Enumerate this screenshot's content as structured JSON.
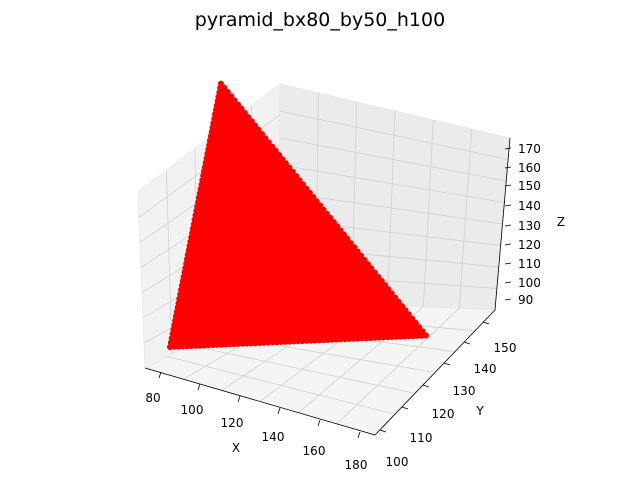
{
  "chart_data": {
    "type": "scatter",
    "projection": "3d",
    "title": "pyramid_bx80_by50_h100",
    "xlabel": "X",
    "ylabel": "Y",
    "zlabel": "Z",
    "grid": true,
    "marker_color": "#ff0000",
    "pane_color": "#f2f2f2",
    "xticks": [
      "80",
      "100",
      "120",
      "140",
      "160",
      "180"
    ],
    "yticks": [
      "100",
      "110",
      "120",
      "130",
      "140",
      "150"
    ],
    "zticks": [
      "90",
      "100",
      "110",
      "120",
      "130",
      "140",
      "150",
      "160",
      "170"
    ],
    "series": [
      {
        "shape": "triangle",
        "vertices": [
          {
            "x": 80,
            "y": 150,
            "z": 160
          },
          {
            "x": 80,
            "y": 100,
            "z": 90
          },
          {
            "x": 180,
            "y": 150,
            "z": 90
          }
        ]
      }
    ]
  }
}
